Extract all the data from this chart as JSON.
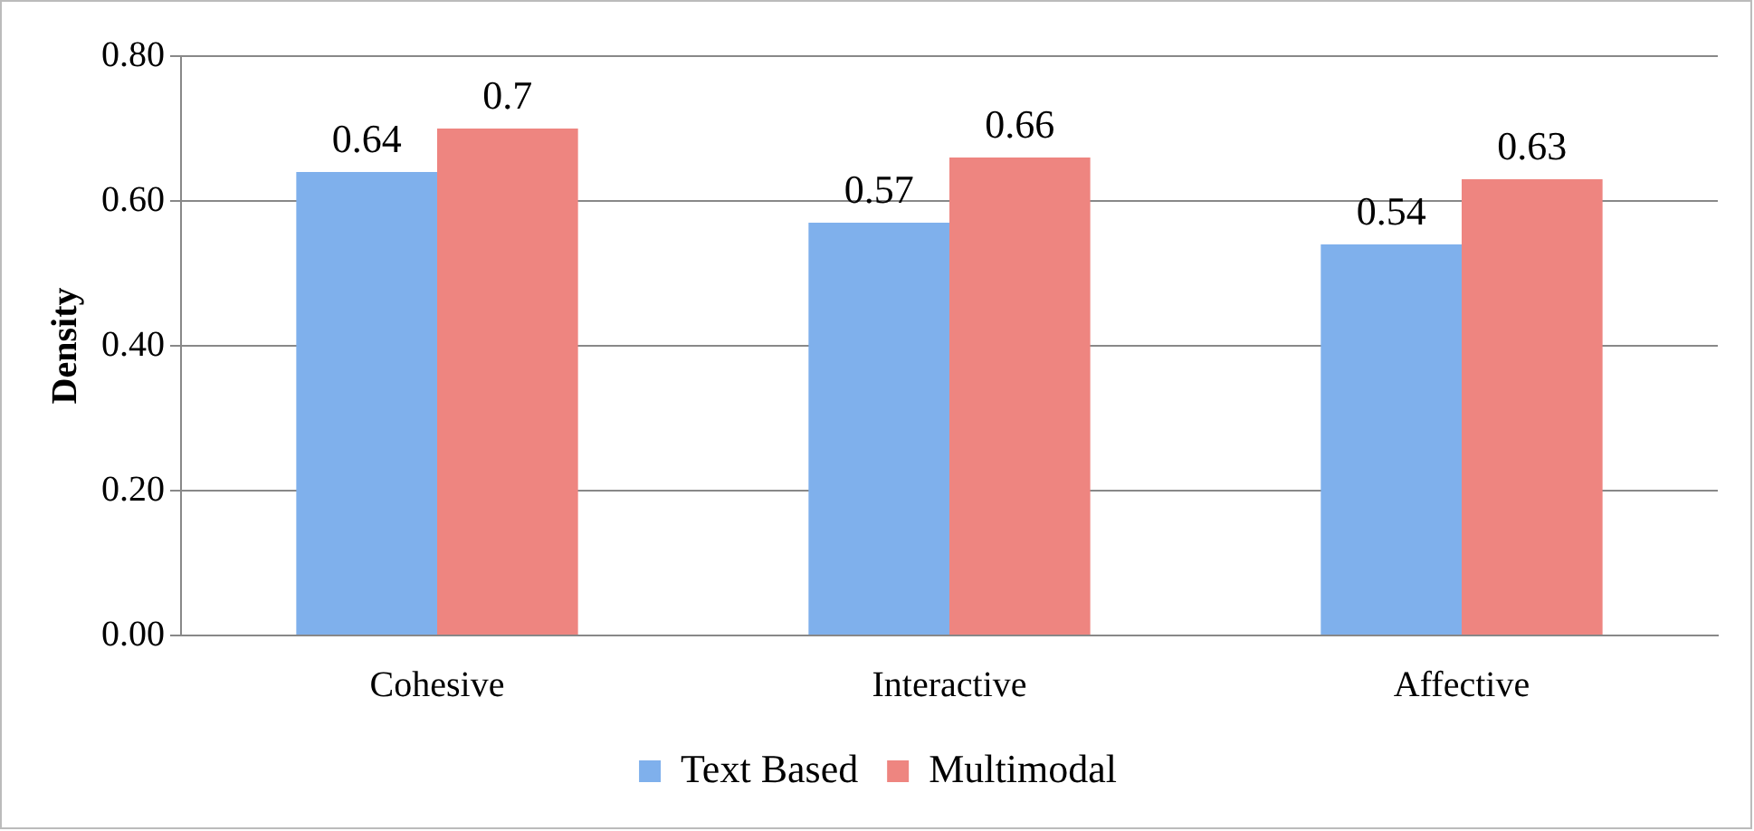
{
  "chart_data": {
    "type": "bar",
    "ylabel": "Density",
    "categories": [
      "Cohesive",
      "Interactive",
      "Affective"
    ],
    "series": [
      {
        "name": "Text Based",
        "color": "#7fb0ec",
        "values": [
          0.64,
          0.57,
          0.54
        ]
      },
      {
        "name": "Multimodal",
        "color": "#ee8580",
        "values": [
          0.7,
          0.66,
          0.63
        ]
      }
    ],
    "ylim": [
      0,
      0.8
    ],
    "yticks": [
      {
        "value": 0,
        "label": "0.00"
      },
      {
        "value": 0.2,
        "label": "0.20"
      },
      {
        "value": 0.4,
        "label": "0.40"
      },
      {
        "value": 0.6,
        "label": "0.60"
      },
      {
        "value": 0.8,
        "label": "0.80"
      }
    ],
    "grid": "y",
    "legend": "bottom",
    "data_labels": true
  }
}
